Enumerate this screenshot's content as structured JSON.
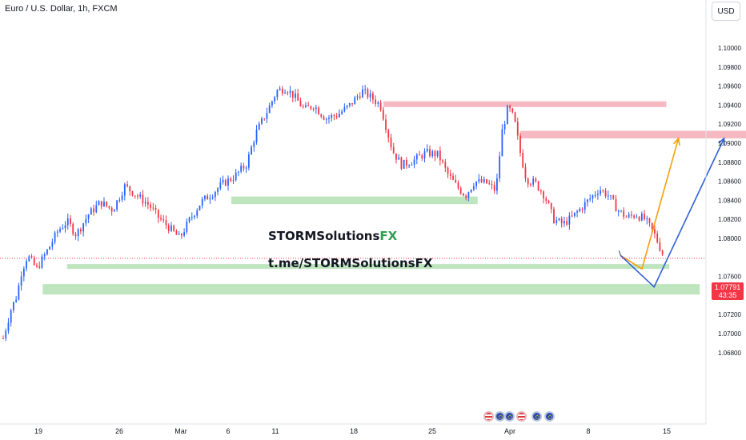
{
  "header": {
    "symbol": "Euro / U.S. Dollar, 1h, FXCM",
    "currency": "USD"
  },
  "overlay": {
    "brand_main": "STORMSolutions",
    "brand_fx": "FX",
    "telegram": "t.me/STORMSolutionsFX"
  },
  "price_tag": {
    "price": "1.07791",
    "countdown": "43:35"
  },
  "colors": {
    "up": "#2962ff",
    "down": "#f23645",
    "resistance_zone": "#f7b9c1",
    "support_zone": "#bfe5bf",
    "arrow_orange": "#f59e0b",
    "arrow_blue": "#2f5fd8"
  },
  "calendar_events": [
    "us-flag",
    "eu-flag",
    "eu-flag",
    "us-flag",
    "eu-flag",
    "eu-flag"
  ],
  "chart_data": {
    "type": "candlestick",
    "timeframe": "1h",
    "x_ticks": [
      "19",
      "26",
      "Mar",
      "6",
      "11",
      "18",
      "25",
      "Apr",
      "8",
      "15"
    ],
    "y_ticks": [
      "1.10000",
      "1.09800",
      "1.09600",
      "1.09400",
      "1.09200",
      "1.09000",
      "1.08800",
      "1.08600",
      "1.08400",
      "1.08200",
      "1.08000",
      "1.07600",
      "1.07400",
      "1.07200",
      "1.07000",
      "1.06800"
    ],
    "ylim": [
      1.0666,
      1.1012
    ],
    "current_price": 1.07791,
    "price_path": [
      [
        0,
        1.0695
      ],
      [
        0.25,
        1.0725
      ],
      [
        0.45,
        1.074
      ],
      [
        0.6,
        1.0765
      ],
      [
        0.8,
        1.0782
      ],
      [
        1.1,
        1.0768
      ],
      [
        1.5,
        1.079
      ],
      [
        1.8,
        1.0808
      ],
      [
        2.1,
        1.0818
      ],
      [
        2.4,
        1.0804
      ],
      [
        2.8,
        1.0825
      ],
      [
        3.2,
        1.0838
      ],
      [
        3.6,
        1.083
      ],
      [
        4.0,
        1.0855
      ],
      [
        4.4,
        1.0845
      ],
      [
        4.8,
        1.0835
      ],
      [
        5.1,
        1.0822
      ],
      [
        5.5,
        1.081
      ],
      [
        5.8,
        1.08
      ],
      [
        6.1,
        1.0818
      ],
      [
        6.5,
        1.0838
      ],
      [
        6.9,
        1.0848
      ],
      [
        7.2,
        1.0857
      ],
      [
        7.6,
        1.0865
      ],
      [
        8.0,
        1.0878
      ],
      [
        8.3,
        1.091
      ],
      [
        8.7,
        1.0935
      ],
      [
        9.0,
        1.0955
      ],
      [
        9.3,
        1.0958
      ],
      [
        9.6,
        1.0948
      ],
      [
        9.9,
        1.0935
      ],
      [
        10.2,
        1.094
      ],
      [
        10.6,
        1.0926
      ],
      [
        11.0,
        1.093
      ],
      [
        11.4,
        1.094
      ],
      [
        11.8,
        1.0955
      ],
      [
        12.1,
        1.0948
      ],
      [
        12.4,
        1.094
      ],
      [
        12.8,
        1.0892
      ],
      [
        13.1,
        1.0877
      ],
      [
        13.5,
        1.0882
      ],
      [
        13.9,
        1.089
      ],
      [
        14.3,
        1.0888
      ],
      [
        14.6,
        1.0868
      ],
      [
        14.9,
        1.0855
      ],
      [
        15.2,
        1.0845
      ],
      [
        15.5,
        1.086
      ],
      [
        15.9,
        1.0858
      ],
      [
        16.2,
        1.085
      ],
      [
        16.4,
        1.0912
      ],
      [
        16.6,
        1.0938
      ],
      [
        16.8,
        1.0925
      ],
      [
        17.0,
        1.089
      ],
      [
        17.2,
        1.0862
      ],
      [
        17.5,
        1.0858
      ],
      [
        17.8,
        1.0845
      ],
      [
        18.1,
        1.082
      ],
      [
        18.4,
        1.0815
      ],
      [
        18.7,
        1.0822
      ],
      [
        19.0,
        1.0832
      ],
      [
        19.3,
        1.0842
      ],
      [
        19.6,
        1.0852
      ],
      [
        19.9,
        1.0845
      ],
      [
        20.2,
        1.083
      ],
      [
        20.5,
        1.0822
      ],
      [
        20.8,
        1.0825
      ],
      [
        21.1,
        1.082
      ],
      [
        21.4,
        1.0805
      ],
      [
        21.6,
        1.079
      ],
      [
        21.75,
        1.07791
      ]
    ],
    "zones": [
      {
        "type": "resistance",
        "x_start": 12.5,
        "x_end": 21.8,
        "y_low": 1.0938,
        "y_high": 1.0944
      },
      {
        "type": "resistance",
        "x_start": 17.0,
        "x_end": 25.2,
        "y_low": 1.0905,
        "y_high": 1.0913
      },
      {
        "type": "support",
        "x_start": 7.5,
        "x_end": 15.6,
        "y_low": 1.0836,
        "y_high": 1.0844
      },
      {
        "type": "support",
        "x_start": 2.1,
        "x_end": 21.9,
        "y_low": 1.0768,
        "y_high": 1.0773
      },
      {
        "type": "support",
        "x_start": 1.3,
        "x_end": 22.9,
        "y_low": 1.0741,
        "y_high": 1.0752
      }
    ],
    "projections": [
      {
        "color": "orange",
        "points": [
          [
            20.3,
            1.0782
          ],
          [
            21.0,
            1.0768
          ],
          [
            22.2,
            1.0905
          ]
        ]
      },
      {
        "color": "blue",
        "points": [
          [
            20.3,
            1.0782
          ],
          [
            21.4,
            1.0749
          ],
          [
            23.7,
            1.0905
          ]
        ]
      }
    ]
  }
}
